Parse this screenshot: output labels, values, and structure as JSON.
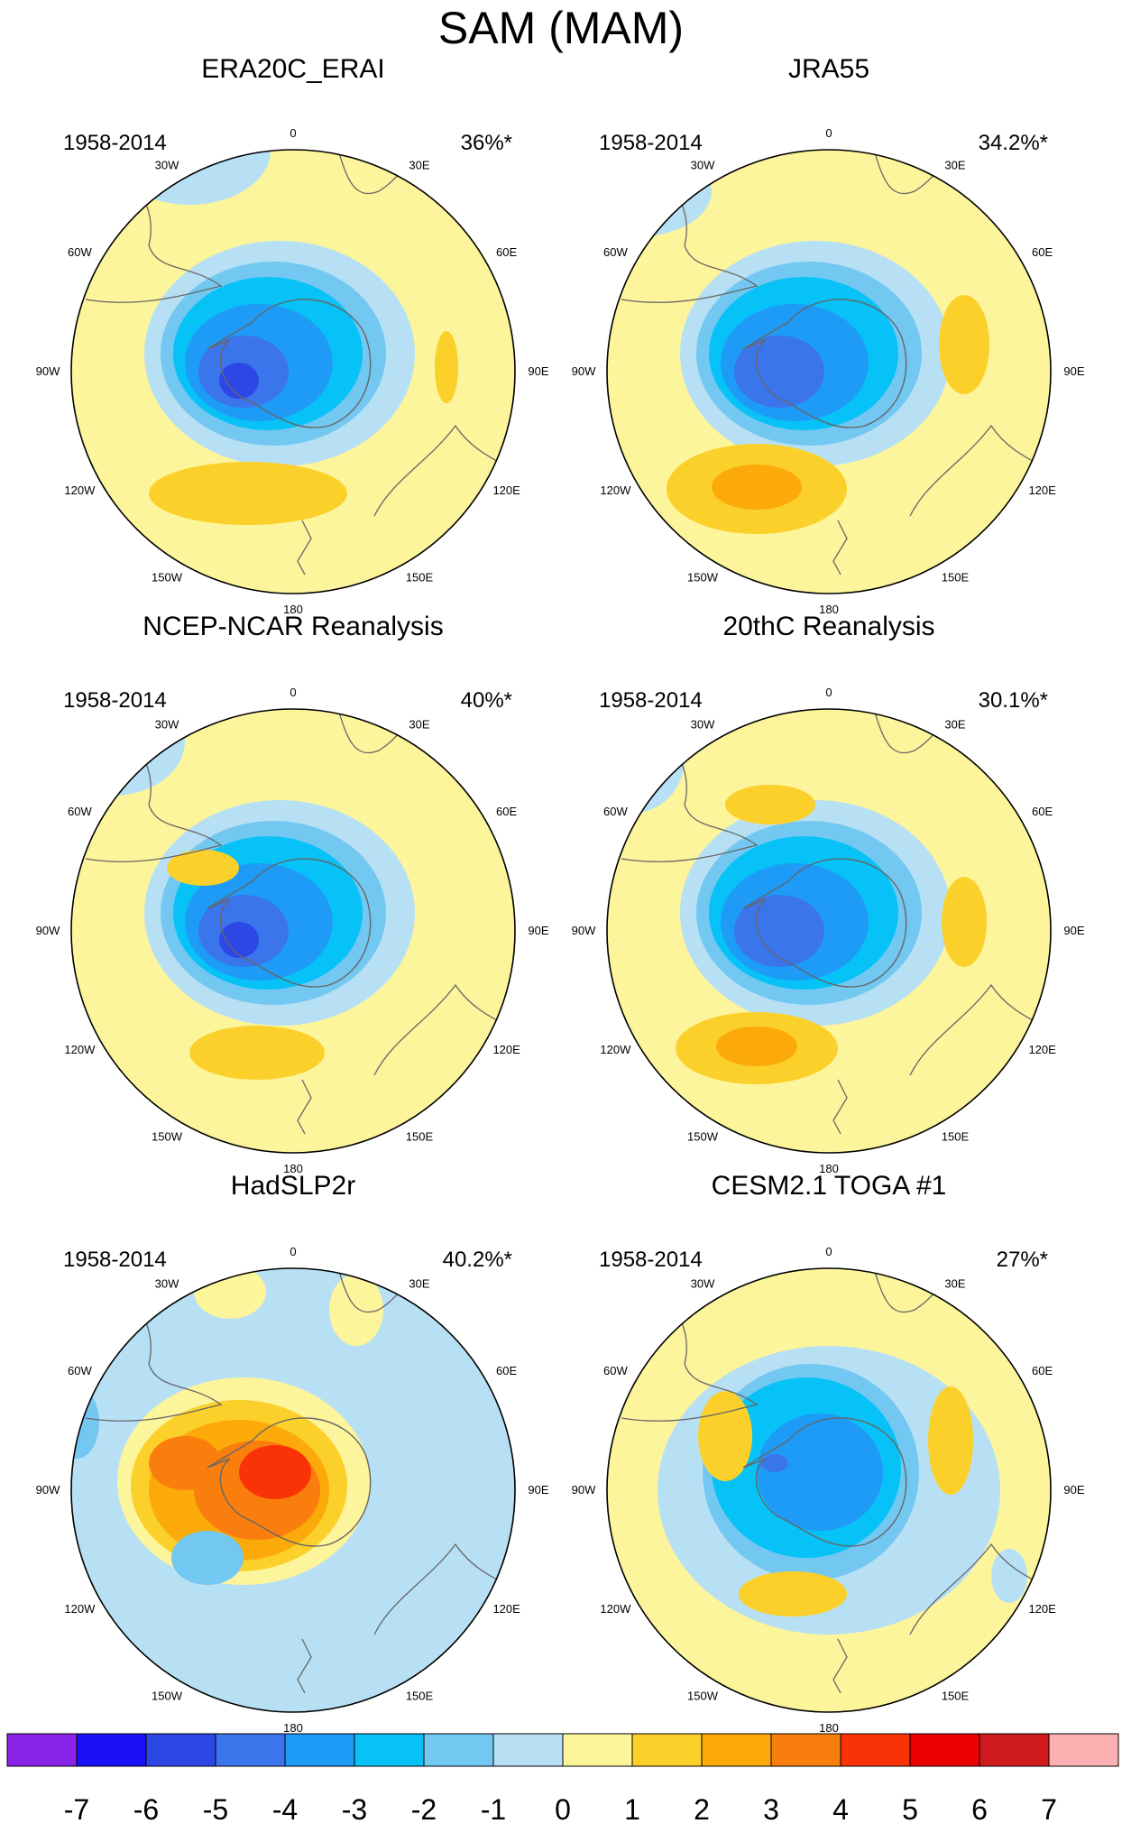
{
  "title": "SAM (MAM)",
  "panels": [
    {
      "title": "ERA20C_ERAI",
      "period": "1958-2014",
      "variance": "36%*"
    },
    {
      "title": "JRA55",
      "period": "1958-2014",
      "variance": "34.2%*"
    },
    {
      "title": "NCEP-NCAR Reanalysis",
      "period": "1958-2014",
      "variance": "40%*"
    },
    {
      "title": "20thC Reanalysis",
      "period": "1958-2014",
      "variance": "30.1%*"
    },
    {
      "title": "HadSLP2r",
      "period": "1958-2014",
      "variance": "40.2%*"
    },
    {
      "title": "CESM2.1 TOGA #1",
      "period": "1958-2014",
      "variance": "27%*"
    }
  ],
  "longitude_labels": [
    "0",
    "30E",
    "60E",
    "90E",
    "120E",
    "150E",
    "180",
    "150W",
    "120W",
    "90W",
    "60W",
    "30W"
  ],
  "colorbar": {
    "labels": [
      "-7",
      "-6",
      "-5",
      "-4",
      "-3",
      "-2",
      "-1",
      "0",
      "1",
      "2",
      "3",
      "4",
      "5",
      "6",
      "7"
    ],
    "colors": [
      "#8a23ea",
      "#1b0ff5",
      "#2d47e6",
      "#3a75ec",
      "#1e9bf7",
      "#07c2f6",
      "#73c8f2",
      "#b8e0f4",
      "#fcf59b",
      "#fcd02b",
      "#fbaa0a",
      "#f97e0e",
      "#f93306",
      "#ec0200",
      "#ce1a1c",
      "#fbb1b1"
    ]
  },
  "colors": {
    "land_outline": "#666666",
    "map_border": "#000000",
    "background": "#ffffff"
  }
}
